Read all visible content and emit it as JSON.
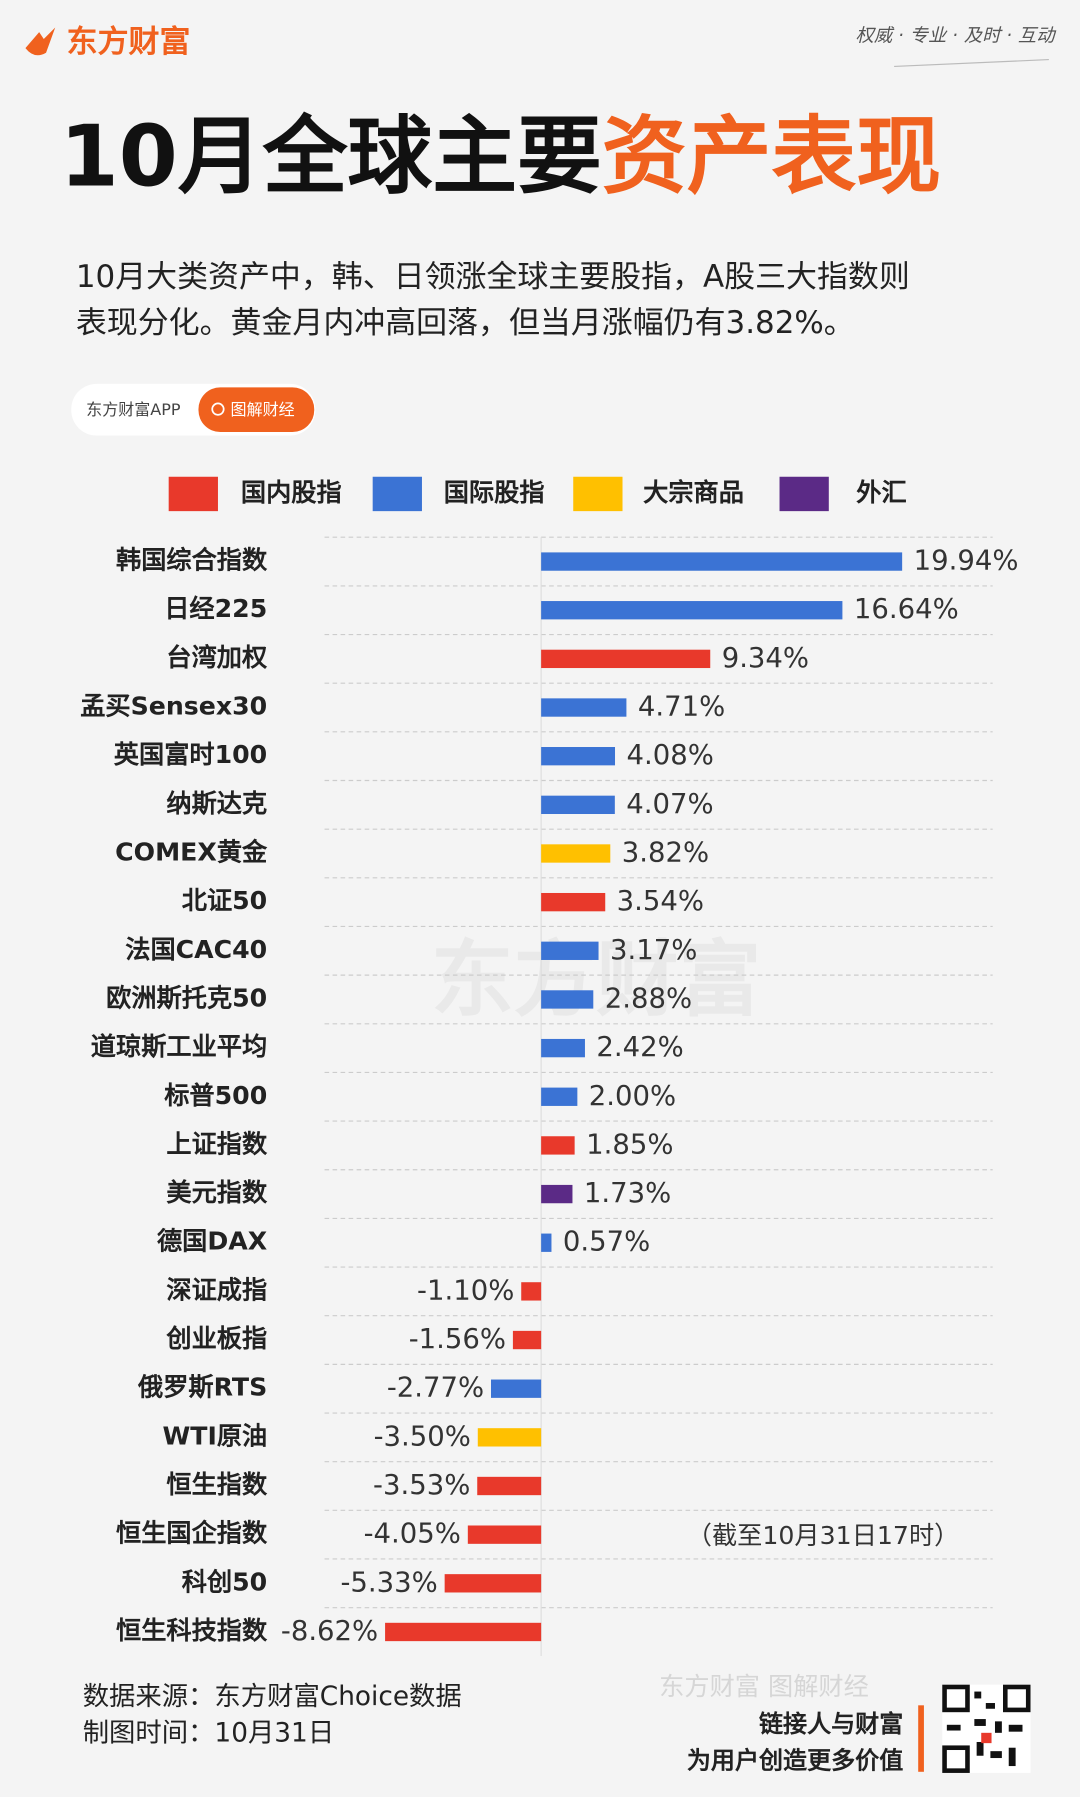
{
  "header": {
    "brand": "东方财富",
    "slogan": "权威 · 专业 · 及时 · 互动",
    "title_parts": [
      "10月全球主要",
      "资产表现"
    ],
    "intro_lines": [
      "10月大类资产中，韩、日领涨全球主要股指，A股三大指数则",
      "表现分化。黄金月内冲高回落，但当月涨幅仍有3.82%。"
    ],
    "tag": "东方财富APP",
    "button": "图解财经"
  },
  "chart_data": {
    "type": "hbar",
    "watermark": "东方财富",
    "note": "（截至10月31日17时）",
    "categories": [
      "韩国综合指数",
      "日经225",
      "台湾加权",
      "孟买Sensex30",
      "英国富时100",
      "纳斯达克",
      "COMEX黄金",
      "北证50",
      "法国CAC40",
      "欧洲斯托克50",
      "道琼斯工业平均",
      "标普500",
      "上证指数",
      "美元指数",
      "德国DAX",
      "深证成指",
      "创业板指",
      "俄罗斯RTS",
      "WTI原油",
      "恒生指数",
      "恒生国企指数",
      "科创50",
      "恒生科技指数"
    ],
    "series": [
      {
        "name": "国内股指",
        "color": "#e8392b",
        "values": [
          null,
          null,
          9.34,
          null,
          null,
          null,
          null,
          3.54,
          null,
          null,
          null,
          null,
          1.85,
          null,
          null,
          -1.1,
          -1.56,
          null,
          null,
          -3.53,
          -4.05,
          -5.33,
          -8.62
        ],
        "value_labels": [
          null,
          null,
          "9.34%",
          null,
          null,
          null,
          null,
          "3.54%",
          null,
          null,
          null,
          null,
          "1.85%",
          null,
          null,
          "-1.10%",
          "-1.56%",
          null,
          null,
          "-3.53%",
          "-4.05%",
          "-5.33%",
          "-8.62%"
        ]
      },
      {
        "name": "国际股指",
        "color": "#3b73d4",
        "values": [
          19.94,
          16.64,
          null,
          4.71,
          4.08,
          4.07,
          null,
          null,
          3.17,
          2.88,
          2.42,
          2.0,
          null,
          null,
          0.57,
          null,
          null,
          -2.77,
          null,
          null,
          null,
          null,
          null
        ],
        "value_labels": [
          "19.94%",
          "16.64%",
          null,
          "4.71%",
          "4.08%",
          "4.07%",
          null,
          null,
          "3.17%",
          "2.88%",
          "2.42%",
          "2.00%",
          null,
          null,
          "0.57%",
          null,
          null,
          "-2.77%",
          null,
          null,
          null,
          null,
          null
        ]
      },
      {
        "name": "大宗商品",
        "color": "#ffc000",
        "values": [
          null,
          null,
          null,
          null,
          null,
          null,
          3.82,
          null,
          null,
          null,
          null,
          null,
          null,
          null,
          null,
          null,
          null,
          null,
          -3.5,
          null,
          null,
          null,
          null
        ],
        "value_labels": [
          null,
          null,
          null,
          null,
          null,
          null,
          "3.82%",
          null,
          null,
          null,
          null,
          null,
          null,
          null,
          null,
          null,
          null,
          null,
          "-3.50%",
          null,
          null,
          null,
          null
        ]
      },
      {
        "name": "外汇",
        "color": "#5b2a86",
        "values": [
          null,
          null,
          null,
          null,
          null,
          null,
          null,
          null,
          null,
          null,
          null,
          null,
          null,
          1.73,
          null,
          null,
          null,
          null,
          null,
          null,
          null,
          null,
          null
        ],
        "value_labels": [
          null,
          null,
          null,
          null,
          null,
          null,
          null,
          null,
          null,
          null,
          null,
          null,
          null,
          "1.73%",
          null,
          null,
          null,
          null,
          null,
          null,
          null,
          null,
          null
        ]
      }
    ]
  },
  "footer": {
    "source": "数据来源：东方财富Choice数据",
    "date": "制图时间：10月31日",
    "watermark": "东方财富 图解财经",
    "slogan_lines": [
      "链接人与财富",
      "为用户创造更多价值"
    ]
  }
}
